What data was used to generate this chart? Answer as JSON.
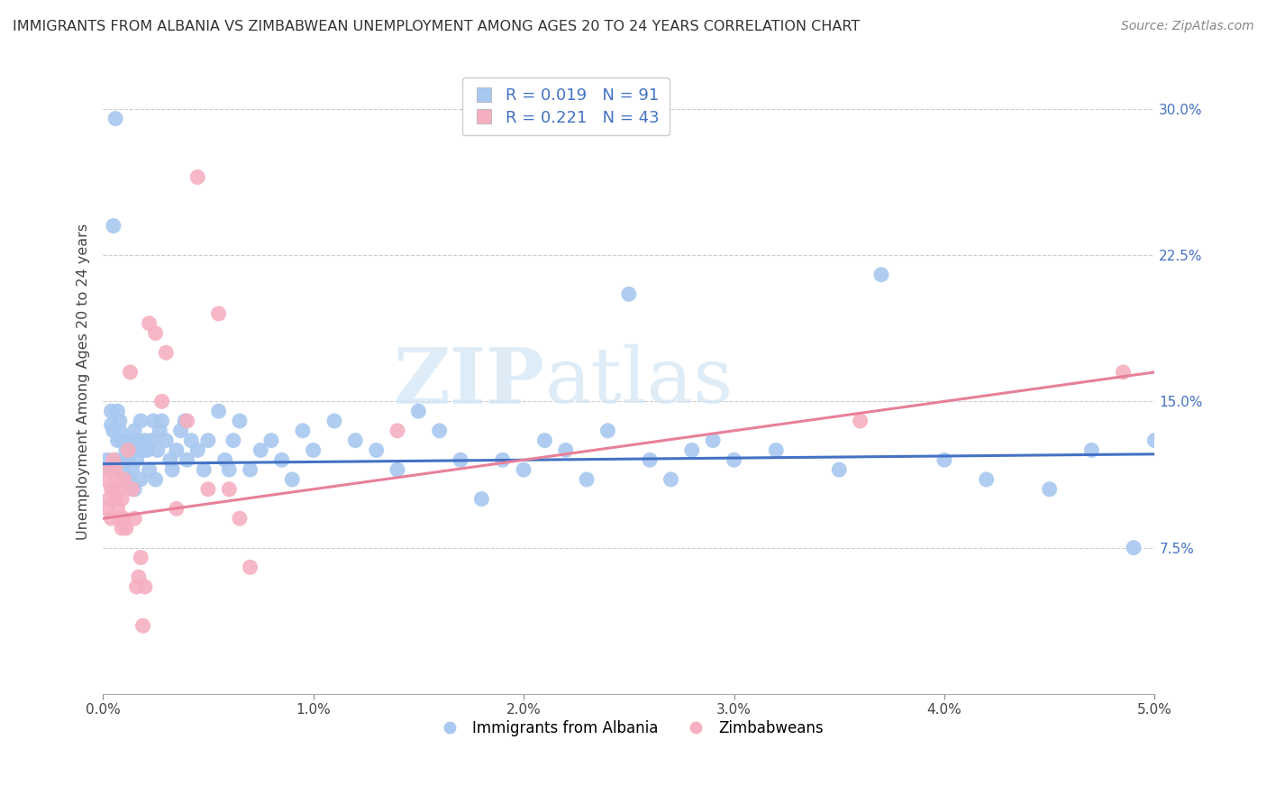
{
  "title": "IMMIGRANTS FROM ALBANIA VS ZIMBABWEAN UNEMPLOYMENT AMONG AGES 20 TO 24 YEARS CORRELATION CHART",
  "source": "Source: ZipAtlas.com",
  "ylabel": "Unemployment Among Ages 20 to 24 years",
  "x_min": 0.0,
  "x_max": 5.0,
  "y_min": 0.0,
  "y_max": 32.0,
  "right_yticks": [
    7.5,
    15.0,
    22.5,
    30.0
  ],
  "right_yticklabels": [
    "7.5%",
    "15.0%",
    "22.5%",
    "30.0%"
  ],
  "blue_R": "0.019",
  "blue_N": "91",
  "pink_R": "0.221",
  "pink_N": "43",
  "blue_color": "#a8c8f0",
  "pink_color": "#f5afc0",
  "blue_line_color": "#4472c4",
  "pink_line_color": "#e8809a",
  "legend_label_blue": "Immigrants from Albania",
  "legend_label_pink": "Zimbabweans",
  "watermark_zip": "ZIP",
  "watermark_atlas": "atlas",
  "blue_trend_x": [
    0.0,
    5.0
  ],
  "blue_trend_y": [
    11.8,
    12.3
  ],
  "pink_trend_x": [
    0.0,
    5.0
  ],
  "pink_trend_y": [
    9.0,
    16.5
  ],
  "blue_scatter_x": [
    0.02,
    0.03,
    0.04,
    0.04,
    0.05,
    0.06,
    0.06,
    0.07,
    0.07,
    0.08,
    0.08,
    0.09,
    0.09,
    0.1,
    0.1,
    0.11,
    0.12,
    0.12,
    0.13,
    0.13,
    0.14,
    0.14,
    0.15,
    0.15,
    0.16,
    0.17,
    0.18,
    0.18,
    0.19,
    0.2,
    0.21,
    0.22,
    0.23,
    0.24,
    0.25,
    0.26,
    0.27,
    0.28,
    0.3,
    0.32,
    0.33,
    0.35,
    0.37,
    0.39,
    0.4,
    0.42,
    0.45,
    0.48,
    0.5,
    0.55,
    0.58,
    0.6,
    0.62,
    0.65,
    0.7,
    0.75,
    0.8,
    0.85,
    0.9,
    0.95,
    1.0,
    1.1,
    1.2,
    1.3,
    1.4,
    1.5,
    1.6,
    1.7,
    1.8,
    1.9,
    2.0,
    2.1,
    2.2,
    2.3,
    2.4,
    2.5,
    2.6,
    2.7,
    2.8,
    2.9,
    3.0,
    3.2,
    3.5,
    3.7,
    4.0,
    4.2,
    4.5,
    4.7,
    4.9,
    5.0,
    0.05
  ],
  "blue_scatter_y": [
    12.0,
    11.5,
    14.5,
    13.8,
    13.5,
    29.5,
    12.0,
    14.5,
    13.0,
    14.0,
    13.5,
    13.0,
    11.5,
    12.0,
    13.0,
    12.5,
    11.0,
    12.0,
    13.0,
    12.5,
    11.5,
    12.8,
    10.5,
    13.5,
    12.0,
    13.0,
    11.0,
    14.0,
    12.5,
    13.0,
    12.5,
    11.5,
    13.0,
    14.0,
    11.0,
    12.5,
    13.5,
    14.0,
    13.0,
    12.0,
    11.5,
    12.5,
    13.5,
    14.0,
    12.0,
    13.0,
    12.5,
    11.5,
    13.0,
    14.5,
    12.0,
    11.5,
    13.0,
    14.0,
    11.5,
    12.5,
    13.0,
    12.0,
    11.0,
    13.5,
    12.5,
    14.0,
    13.0,
    12.5,
    11.5,
    14.5,
    13.5,
    12.0,
    10.0,
    12.0,
    11.5,
    13.0,
    12.5,
    11.0,
    13.5,
    20.5,
    12.0,
    11.0,
    12.5,
    13.0,
    12.0,
    12.5,
    11.5,
    21.5,
    12.0,
    11.0,
    10.5,
    12.5,
    7.5,
    13.0,
    24.0
  ],
  "pink_scatter_x": [
    0.01,
    0.02,
    0.03,
    0.03,
    0.04,
    0.04,
    0.05,
    0.05,
    0.06,
    0.06,
    0.07,
    0.07,
    0.08,
    0.08,
    0.09,
    0.09,
    0.1,
    0.1,
    0.11,
    0.12,
    0.13,
    0.14,
    0.15,
    0.16,
    0.17,
    0.18,
    0.19,
    0.2,
    0.22,
    0.25,
    0.28,
    0.3,
    0.35,
    0.4,
    0.45,
    0.5,
    0.55,
    0.6,
    0.65,
    0.7,
    1.4,
    3.6,
    4.85
  ],
  "pink_scatter_y": [
    11.0,
    9.5,
    11.5,
    10.0,
    10.5,
    9.0,
    10.5,
    12.0,
    11.5,
    10.0,
    9.5,
    11.0,
    9.0,
    10.5,
    8.5,
    10.0,
    9.0,
    11.0,
    8.5,
    12.5,
    16.5,
    10.5,
    9.0,
    5.5,
    6.0,
    7.0,
    3.5,
    5.5,
    19.0,
    18.5,
    15.0,
    17.5,
    9.5,
    14.0,
    26.5,
    10.5,
    19.5,
    10.5,
    9.0,
    6.5,
    13.5,
    14.0,
    16.5
  ]
}
